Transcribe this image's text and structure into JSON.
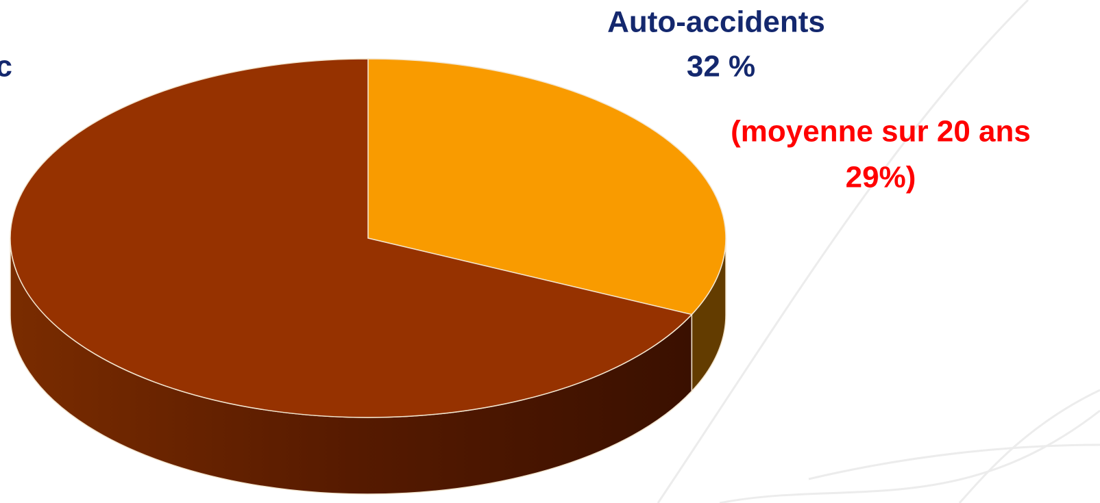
{
  "chart_data": {
    "type": "pie",
    "categories": [
      "Auto-accidents",
      "c"
    ],
    "values": [
      32,
      68
    ],
    "value_labels": [
      "32 %",
      null
    ],
    "colors": [
      "#f99b00",
      "#963200"
    ],
    "annotation": [
      "(moyenne sur 20 ans",
      "29%)"
    ]
  }
}
